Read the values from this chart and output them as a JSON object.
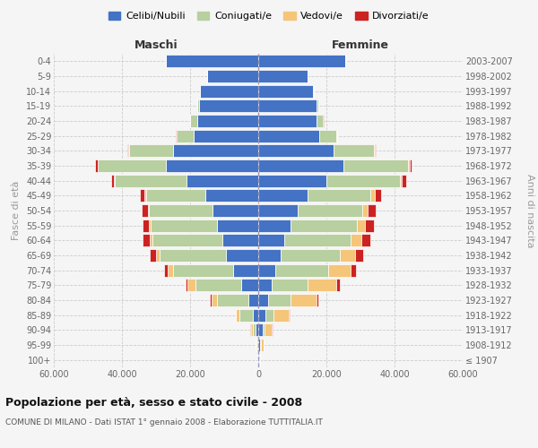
{
  "age_groups": [
    "100+",
    "95-99",
    "90-94",
    "85-89",
    "80-84",
    "75-79",
    "70-74",
    "65-69",
    "60-64",
    "55-59",
    "50-54",
    "45-49",
    "40-44",
    "35-39",
    "30-34",
    "25-29",
    "20-24",
    "15-19",
    "10-14",
    "5-9",
    "0-4"
  ],
  "birth_years": [
    "≤ 1907",
    "1908-1912",
    "1913-1917",
    "1918-1922",
    "1923-1927",
    "1928-1932",
    "1933-1937",
    "1938-1942",
    "1943-1947",
    "1948-1952",
    "1953-1957",
    "1958-1962",
    "1963-1967",
    "1968-1972",
    "1973-1977",
    "1978-1982",
    "1983-1987",
    "1988-1992",
    "1993-1997",
    "1998-2002",
    "2003-2007"
  ],
  "colors": {
    "celibi": "#4472C4",
    "coniugati": "#b8cfa0",
    "vedovi": "#f5c57a",
    "divorziati": "#cc2222"
  },
  "male": {
    "celibi": [
      200,
      350,
      700,
      1500,
      3000,
      5000,
      7500,
      9500,
      10500,
      12000,
      13500,
      15500,
      21000,
      27000,
      25000,
      19000,
      18000,
      17500,
      17000,
      15000,
      27000
    ],
    "coniugati": [
      80,
      250,
      1000,
      4000,
      9000,
      13500,
      17500,
      19500,
      20500,
      19500,
      18500,
      17500,
      21000,
      20000,
      13000,
      5000,
      2000,
      500,
      200,
      50,
      50
    ],
    "vedovi": [
      40,
      150,
      500,
      1000,
      1800,
      2200,
      1600,
      1100,
      750,
      550,
      450,
      350,
      250,
      150,
      80,
      40,
      20,
      10,
      5,
      3,
      3
    ],
    "divorziati": [
      8,
      40,
      80,
      180,
      350,
      650,
      1100,
      1700,
      2100,
      1900,
      1700,
      1400,
      900,
      650,
      250,
      80,
      40,
      15,
      8,
      3,
      3
    ]
  },
  "female": {
    "celibi": [
      300,
      600,
      1200,
      2000,
      3000,
      4000,
      5000,
      6500,
      7500,
      9500,
      11500,
      14500,
      20000,
      25000,
      22000,
      18000,
      17000,
      17000,
      16000,
      14500,
      25500
    ],
    "coniugati": [
      40,
      150,
      600,
      2500,
      6500,
      10500,
      15500,
      17500,
      19500,
      19500,
      19000,
      18500,
      21500,
      19000,
      12000,
      5000,
      2000,
      600,
      200,
      80,
      80
    ],
    "vedovi": [
      250,
      700,
      2200,
      4500,
      7500,
      8500,
      6500,
      4500,
      3200,
      2300,
      1600,
      1100,
      600,
      350,
      180,
      80,
      40,
      20,
      10,
      5,
      5
    ],
    "divorziati": [
      8,
      40,
      80,
      250,
      550,
      1000,
      1700,
      2400,
      2700,
      2600,
      2400,
      1900,
      1400,
      750,
      350,
      130,
      50,
      20,
      8,
      4,
      4
    ]
  },
  "title": "Popolazione per età, sesso e stato civile - 2008",
  "subtitle": "COMUNE DI MILANO - Dati ISTAT 1° gennaio 2008 - Elaborazione TUTTITALIA.IT",
  "xlabel_left": "Maschi",
  "xlabel_right": "Femmine",
  "ylabel_left": "Fasce di età",
  "ylabel_right": "Anni di nascita",
  "legend_labels": [
    "Celibi/Nubili",
    "Coniugati/e",
    "Vedovi/e",
    "Divorziati/e"
  ],
  "xlim": 60000,
  "xticks": [
    -60000,
    -40000,
    -20000,
    0,
    20000,
    40000,
    60000
  ],
  "xticklabels": [
    "60.000",
    "40.000",
    "20.000",
    "0",
    "20.000",
    "40.000",
    "60.000"
  ],
  "background_color": "#f5f5f5",
  "bar_edge_color": "white"
}
